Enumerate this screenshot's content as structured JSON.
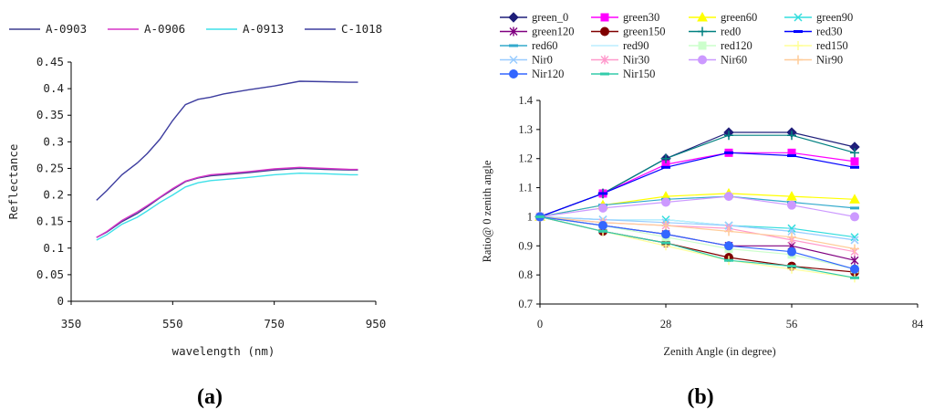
{
  "panel_labels": {
    "a": "(a)",
    "b": "(b)"
  },
  "chart_data": [
    {
      "type": "line",
      "title": "",
      "xlabel": "wavelength (nm)",
      "ylabel": "Reflectance",
      "xlim": [
        350,
        950
      ],
      "ylim": [
        0,
        0.45
      ],
      "xticks": [
        350,
        550,
        750,
        950
      ],
      "yticks": [
        0,
        0.05,
        0.1,
        0.15,
        0.2,
        0.25,
        0.3,
        0.35,
        0.4,
        0.45
      ],
      "xtick_labels": [
        "350",
        "550",
        "750",
        "950"
      ],
      "ytick_labels": [
        "0",
        "0.05",
        "0.1",
        "0.15",
        "0.2",
        "0.25",
        "0.3",
        "0.35",
        "0.4",
        "0.45"
      ],
      "legend_position": "top",
      "series": [
        {
          "name": "A-0903",
          "color": "#3d3d8f",
          "x": [
            400,
            420,
            450,
            480,
            500,
            525,
            550,
            575,
            600,
            625,
            650,
            700,
            750,
            800,
            850,
            900,
            915
          ],
          "y": [
            0.12,
            0.13,
            0.15,
            0.165,
            0.178,
            0.195,
            0.21,
            0.225,
            0.232,
            0.236,
            0.238,
            0.242,
            0.247,
            0.25,
            0.248,
            0.247,
            0.247
          ]
        },
        {
          "name": "A-0906",
          "color": "#d633c7",
          "x": [
            400,
            420,
            450,
            480,
            500,
            525,
            550,
            575,
            600,
            625,
            650,
            700,
            750,
            800,
            850,
            900,
            915
          ],
          "y": [
            0.12,
            0.131,
            0.152,
            0.168,
            0.18,
            0.196,
            0.212,
            0.226,
            0.233,
            0.238,
            0.24,
            0.244,
            0.249,
            0.252,
            0.25,
            0.248,
            0.248
          ]
        },
        {
          "name": "A-0913",
          "color": "#3ee0e8",
          "x": [
            400,
            420,
            450,
            480,
            500,
            525,
            550,
            575,
            600,
            625,
            650,
            700,
            750,
            800,
            850,
            900,
            915
          ],
          "y": [
            0.115,
            0.125,
            0.145,
            0.158,
            0.17,
            0.186,
            0.2,
            0.215,
            0.223,
            0.227,
            0.229,
            0.233,
            0.238,
            0.241,
            0.24,
            0.238,
            0.238
          ]
        },
        {
          "name": "C-1018",
          "color": "#3d3d9f",
          "x": [
            400,
            420,
            450,
            480,
            500,
            525,
            550,
            575,
            600,
            625,
            650,
            700,
            750,
            800,
            850,
            900,
            915
          ],
          "y": [
            0.19,
            0.208,
            0.238,
            0.26,
            0.278,
            0.305,
            0.34,
            0.37,
            0.38,
            0.384,
            0.39,
            0.398,
            0.405,
            0.414,
            0.413,
            0.412,
            0.412
          ]
        }
      ]
    },
    {
      "type": "line",
      "title": "",
      "xlabel": "Zenith Angle (in degree)",
      "ylabel": "Ratio@ 0 zenith angle",
      "xlim": [
        0,
        84
      ],
      "ylim": [
        0.7,
        1.4
      ],
      "xticks": [
        0,
        28,
        56,
        84
      ],
      "yticks": [
        0.7,
        0.8,
        0.9,
        1.0,
        1.1,
        1.2,
        1.3,
        1.4
      ],
      "xtick_labels": [
        "0",
        "28",
        "56",
        "84"
      ],
      "ytick_labels": [
        "0.7",
        "0.8",
        "0.9",
        "1",
        "1.1",
        "1.2",
        "1.3",
        "1.4"
      ],
      "legend_position": "top",
      "x": [
        0,
        14,
        28,
        42,
        56,
        70
      ],
      "series": [
        {
          "name": "green_0",
          "color": "#1f1f7a",
          "marker": "diamond",
          "values": [
            1.0,
            1.08,
            1.2,
            1.29,
            1.29,
            1.24
          ]
        },
        {
          "name": "green30",
          "color": "#ff00ff",
          "marker": "square",
          "values": [
            1.0,
            1.08,
            1.18,
            1.22,
            1.22,
            1.19
          ]
        },
        {
          "name": "green60",
          "color": "#ffff00",
          "marker": "triangle",
          "values": [
            1.0,
            1.04,
            1.07,
            1.08,
            1.07,
            1.06
          ]
        },
        {
          "name": "green90",
          "color": "#33dddd",
          "marker": "x",
          "values": [
            1.0,
            0.99,
            0.99,
            0.97,
            0.96,
            0.93
          ]
        },
        {
          "name": "green120",
          "color": "#800080",
          "marker": "star",
          "values": [
            1.0,
            0.97,
            0.94,
            0.9,
            0.9,
            0.85
          ]
        },
        {
          "name": "green150",
          "color": "#800000",
          "marker": "circle",
          "values": [
            1.0,
            0.95,
            0.91,
            0.86,
            0.83,
            0.81
          ]
        },
        {
          "name": "red0",
          "color": "#008080",
          "marker": "plus",
          "values": [
            1.0,
            1.08,
            1.2,
            1.28,
            1.28,
            1.22
          ]
        },
        {
          "name": "red30",
          "color": "#0000ff",
          "marker": "dash",
          "values": [
            1.0,
            1.08,
            1.17,
            1.22,
            1.21,
            1.17
          ]
        },
        {
          "name": "red60",
          "color": "#33aacc",
          "marker": "dash",
          "values": [
            1.0,
            1.04,
            1.06,
            1.07,
            1.05,
            1.03
          ]
        },
        {
          "name": "red90",
          "color": "#bbeeff",
          "marker": "none",
          "values": [
            1.0,
            0.99,
            0.99,
            0.97,
            0.95,
            0.92
          ]
        },
        {
          "name": "red120",
          "color": "#ccffcc",
          "marker": "square",
          "values": [
            1.0,
            0.97,
            0.93,
            0.89,
            0.87,
            0.82
          ]
        },
        {
          "name": "red150",
          "color": "#ffff99",
          "marker": "plus",
          "values": [
            1.0,
            0.95,
            0.9,
            0.85,
            0.82,
            0.79
          ]
        },
        {
          "name": "Nir0",
          "color": "#99ccff",
          "marker": "x",
          "values": [
            1.0,
            0.99,
            0.98,
            0.97,
            0.95,
            0.92
          ]
        },
        {
          "name": "Nir30",
          "color": "#ff99cc",
          "marker": "star",
          "values": [
            1.0,
            0.98,
            0.97,
            0.96,
            0.92,
            0.88
          ]
        },
        {
          "name": "Nir60",
          "color": "#cc99ff",
          "marker": "circle",
          "values": [
            1.0,
            1.03,
            1.05,
            1.07,
            1.04,
            1.0
          ]
        },
        {
          "name": "Nir90",
          "color": "#ffcc99",
          "marker": "plus",
          "values": [
            1.0,
            0.98,
            0.97,
            0.95,
            0.93,
            0.89
          ]
        },
        {
          "name": "Nir120",
          "color": "#3366ff",
          "marker": "circle",
          "values": [
            1.0,
            0.97,
            0.94,
            0.9,
            0.88,
            0.82
          ]
        },
        {
          "name": "Nir150",
          "color": "#33ccaa",
          "marker": "dash",
          "values": [
            1.0,
            0.95,
            0.91,
            0.85,
            0.83,
            0.79
          ]
        }
      ]
    }
  ]
}
